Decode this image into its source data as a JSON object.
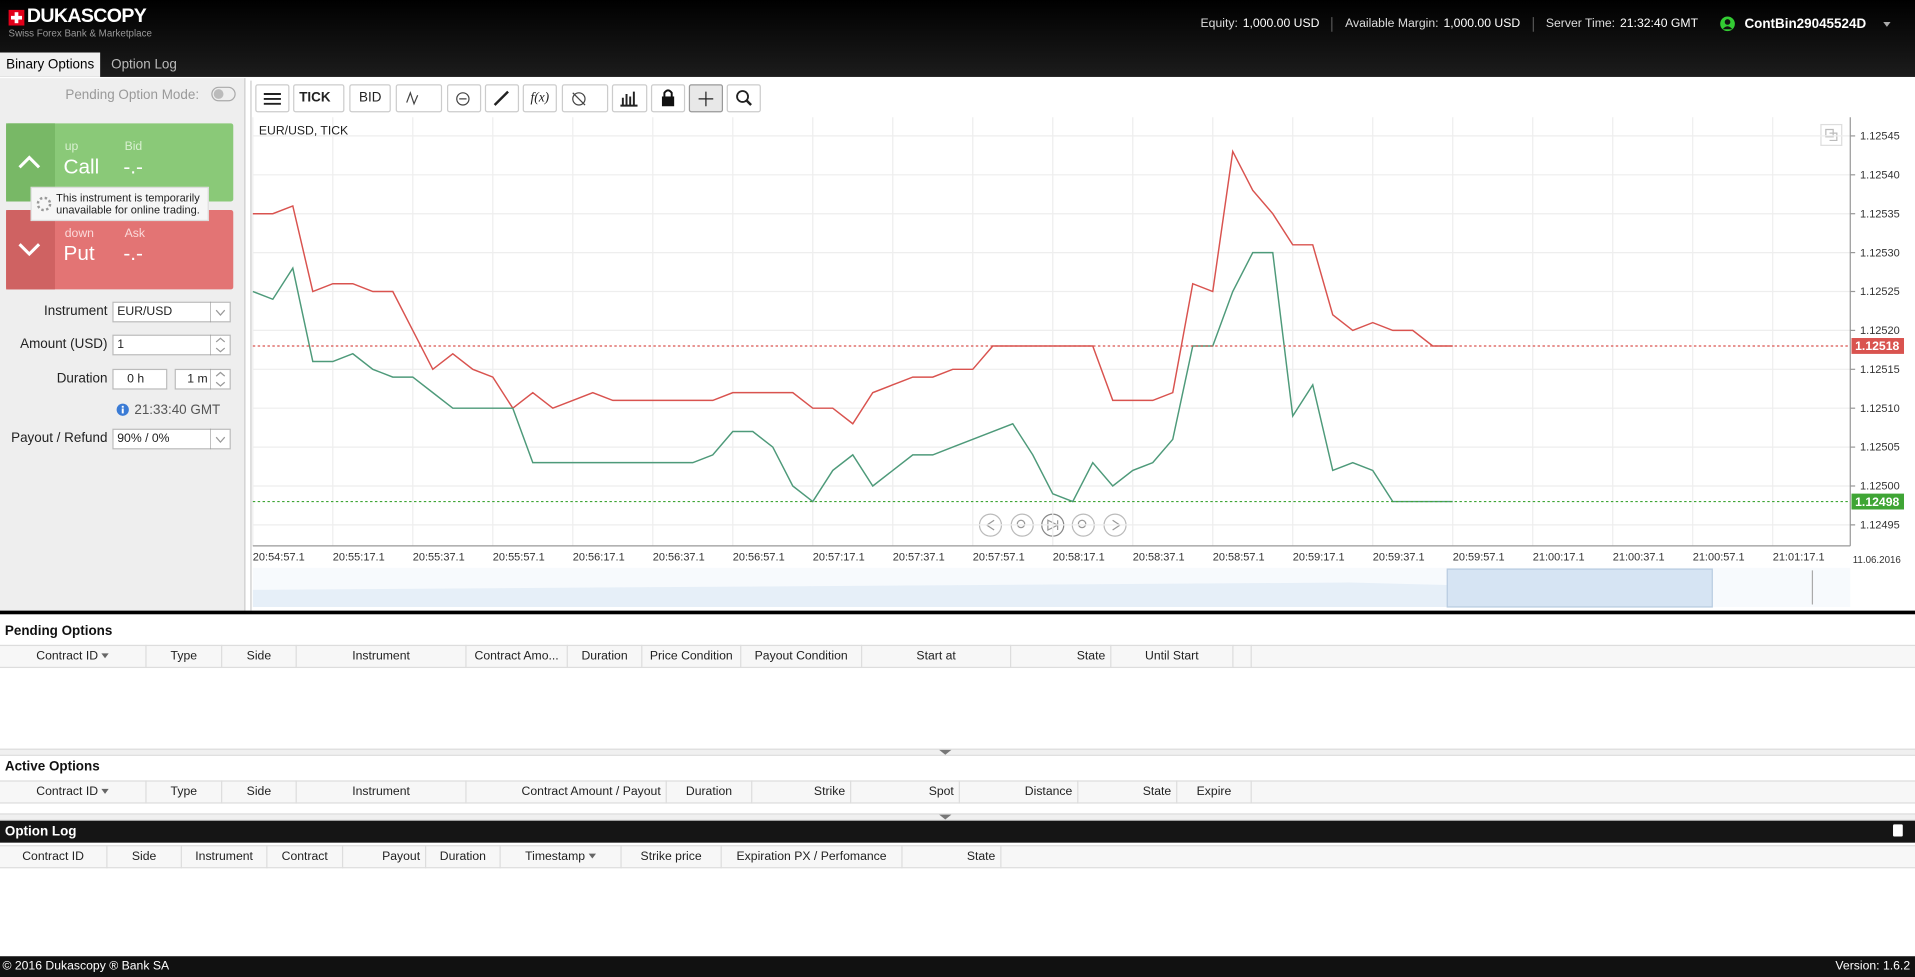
{
  "header": {
    "logo": "DUKASCOPY",
    "tagline": "Swiss Forex Bank & Marketplace",
    "equity_label": "Equity:",
    "equity": "1,000.00 USD",
    "margin_label": "Available Margin:",
    "margin": "1,000.00 USD",
    "server_time_label": "Server Time:",
    "server_time": "21:32:40 GMT",
    "user": "ContBin29045524D"
  },
  "tabs": [
    "Binary Options",
    "Option Log"
  ],
  "panel": {
    "pending_mode": "Pending Option Mode:",
    "call": {
      "direction": "up",
      "label": "Call",
      "price_label": "Bid",
      "price": "-.-"
    },
    "put": {
      "direction": "down",
      "label": "Put",
      "price_label": "Ask",
      "price": "-.-"
    },
    "tooltip": "This instrument is temporarily unavailable for online trading.",
    "instrument_label": "Instrument",
    "instrument": "EUR/USD",
    "amount_label": "Amount (USD)",
    "amount": "1",
    "duration_label": "Duration",
    "duration_hours": "0 h",
    "duration_minutes": "1 m",
    "expiry_time": "21:33:40 GMT",
    "payout_label": "Payout / Refund",
    "payout": "90% / 0%"
  },
  "chart": {
    "type": "line",
    "toolbar": {
      "feed": "TICK",
      "side": "BID",
      "indicators": "f(x)"
    },
    "title": "EUR/USD, TICK",
    "ylim": [
      1.124923,
      1.125474
    ],
    "yticks": [
      1.12495,
      {
        "value": 1.125,
        "label": "1.12500"
      },
      1.12505,
      {
        "value": 1.1251,
        "label": "1.12510"
      },
      1.12515,
      {
        "value": 1.1252,
        "label": "1.12520"
      },
      1.12525,
      {
        "value": 1.1253,
        "label": "1.12530"
      },
      1.12535,
      {
        "value": 1.1254,
        "label": "1.12540"
      },
      1.12545
    ],
    "xticks": [
      "20:54:57.1",
      "20:55:17.1",
      "20:55:37.1",
      "20:55:57.1",
      "20:56:17.1",
      "20:56:37.1",
      "20:56:57.1",
      "20:57:17.1",
      "20:57:37.1",
      "20:57:57.1",
      "20:58:17.1",
      "20:58:37.1",
      "20:58:57.1",
      "20:59:17.1",
      "20:59:37.1",
      "20:59:57.1",
      "21:00:17.1",
      "21:00:37.1",
      "21:00:57.1",
      "21:01:17.1"
    ],
    "date": "11.06.2016",
    "series": [
      {
        "color": "#d9534f",
        "values": [
          1.12535,
          1.12535,
          1.12536,
          1.12525,
          1.12526,
          1.12526,
          1.12525,
          1.12525,
          1.1252,
          1.12515,
          1.12517,
          1.12515,
          1.12514,
          1.1251,
          1.12512,
          1.1251,
          1.12511,
          1.12512,
          1.12511,
          1.12511,
          1.12511,
          1.12511,
          1.12511,
          1.12511,
          1.12512,
          1.12512,
          1.12512,
          1.12512,
          1.1251,
          1.1251,
          1.12508,
          1.12512,
          1.12513,
          1.12514,
          1.12514,
          1.12515,
          1.12515,
          1.12518,
          1.12518,
          1.12518,
          1.12518,
          1.12518,
          1.12518,
          1.12511,
          1.12511,
          1.12511,
          1.12512,
          1.12526,
          1.12525,
          1.12543,
          1.12538,
          1.12535,
          1.12531,
          1.12531,
          1.12522,
          1.1252,
          1.12521,
          1.1252,
          1.1252,
          1.12518,
          1.12518
        ]
      },
      {
        "color": "#4e9a7a",
        "values": [
          1.12525,
          1.12524,
          1.12528,
          1.12516,
          1.12516,
          1.12517,
          1.12515,
          1.12514,
          1.12514,
          1.12512,
          1.1251,
          1.1251,
          1.1251,
          1.1251,
          1.12503,
          1.12503,
          1.12503,
          1.12503,
          1.12503,
          1.12503,
          1.12503,
          1.12503,
          1.12503,
          1.12504,
          1.12507,
          1.12507,
          1.12505,
          1.125,
          1.12498,
          1.12502,
          1.12504,
          1.125,
          1.12502,
          1.12504,
          1.12504,
          1.12505,
          1.12506,
          1.12507,
          1.12508,
          1.12504,
          1.12499,
          1.12498,
          1.12503,
          1.125,
          1.12502,
          1.12503,
          1.12506,
          1.12518,
          1.12518,
          1.12525,
          1.1253,
          1.1253,
          1.12509,
          1.12513,
          1.12502,
          1.12503,
          1.12502,
          1.12498,
          1.12498,
          1.12498,
          1.12498
        ]
      }
    ],
    "ask_price": 1.12518,
    "ask_color": "#d9534f",
    "bid_price": 1.12498,
    "bid_color": "#3fa535"
  },
  "pending_options": {
    "title": "Pending Options",
    "columns": [
      "Contract ID",
      "Type",
      "Side",
      "Instrument",
      "Contract Amo...",
      "Duration",
      "Price Condition",
      "Payout Condition",
      "Start at",
      "State",
      "Until Start"
    ]
  },
  "active_options": {
    "title": "Active Options",
    "columns": [
      "Contract ID",
      "Type",
      "Side",
      "Instrument",
      "Contract Amount / Payout",
      "Duration",
      "Strike",
      "Spot",
      "Distance",
      "State",
      "Expire"
    ]
  },
  "option_log": {
    "title": "Option Log",
    "columns": [
      "Contract ID",
      "Side",
      "Instrument",
      "Contract",
      "Payout",
      "Duration",
      "Timestamp",
      "Strike price",
      "Expiration PX / Perfomance",
      "State"
    ]
  },
  "footer": {
    "copyright": "© 2016 Dukascopy ® Bank SA",
    "version": "Version: 1.6.2"
  }
}
